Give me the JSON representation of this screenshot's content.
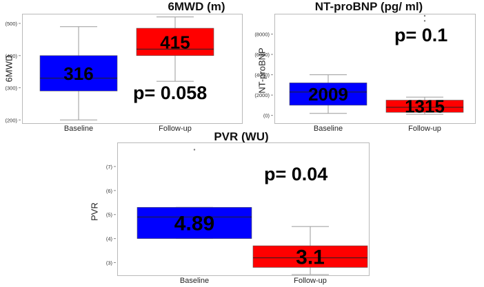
{
  "colors": {
    "baseline": "#0000ff",
    "followup": "#ff0000",
    "frame": "#b9b9b9",
    "whisker": "#9a9a9a"
  },
  "chart_data": [
    {
      "id": "p1",
      "type": "box",
      "title": "6MWD (m)",
      "ylabel": "6MWD",
      "xlabel": "",
      "categories": [
        "Baseline",
        "Follow-up"
      ],
      "ylim": [
        192,
        530
      ],
      "yticks": [
        200,
        300,
        400,
        500
      ],
      "ytick_labels": [
        "(200)",
        "(300)",
        "(400)",
        "(500)"
      ],
      "boxes": [
        {
          "category": "Baseline",
          "whisker_low": 200,
          "q1": 290,
          "median": 330,
          "q3": 400,
          "whisker_high": 490,
          "label": "316",
          "color": "#0000ff"
        },
        {
          "category": "Follow-up",
          "whisker_low": 320,
          "q1": 400,
          "median": 420,
          "q3": 485,
          "whisker_high": 520,
          "label": "415",
          "color": "#ff0000"
        }
      ],
      "outliers": [],
      "annotation": "p= 0.058"
    },
    {
      "id": "p2",
      "type": "box",
      "title": "NT-proBNP (pg/ ml)",
      "ylabel": "NT-proBNP",
      "xlabel": "",
      "categories": [
        "Baseline",
        "Follow-up"
      ],
      "ylim": [
        -700,
        10000
      ],
      "yticks": [
        0,
        2000,
        4000,
        6000,
        8000
      ],
      "ytick_labels": [
        "(0)",
        "(2000)",
        "(4000)",
        "(6000)",
        "(8000)"
      ],
      "boxes": [
        {
          "category": "Baseline",
          "whisker_low": 200,
          "q1": 1000,
          "median": 2300,
          "q3": 3200,
          "whisker_high": 4000,
          "label": "2009",
          "color": "#0000ff"
        },
        {
          "category": "Follow-up",
          "whisker_low": 100,
          "q1": 300,
          "median": 800,
          "q3": 1500,
          "whisker_high": 1800,
          "label": "1315",
          "color": "#ff0000"
        }
      ],
      "outliers": [
        {
          "category": "Follow-up",
          "value": 9300
        },
        {
          "category": "Follow-up",
          "value": 9800
        }
      ],
      "annotation": "p= 0.1"
    },
    {
      "id": "p3",
      "type": "box",
      "title": "PVR (WU)",
      "ylabel": "PVR",
      "xlabel": "",
      "categories": [
        "Baseline",
        "Follow-up"
      ],
      "ylim": [
        2.5,
        8.0
      ],
      "yticks": [
        3,
        4,
        5,
        6,
        7
      ],
      "ytick_labels": [
        "(3)",
        "(4)",
        "(5)",
        "(6)",
        "(7)"
      ],
      "boxes": [
        {
          "category": "Baseline",
          "whisker_low": 4.0,
          "q1": 4.0,
          "median": 4.9,
          "q3": 5.3,
          "whisker_high": 5.3,
          "label": "4.89",
          "color": "#0000ff"
        },
        {
          "category": "Follow-up",
          "whisker_low": 2.5,
          "q1": 2.8,
          "median": 3.2,
          "q3": 3.7,
          "whisker_high": 4.5,
          "label": "3.1",
          "color": "#ff0000"
        }
      ],
      "outliers": [
        {
          "category": "Baseline",
          "value": 7.7
        }
      ],
      "annotation": "p= 0.04"
    }
  ]
}
